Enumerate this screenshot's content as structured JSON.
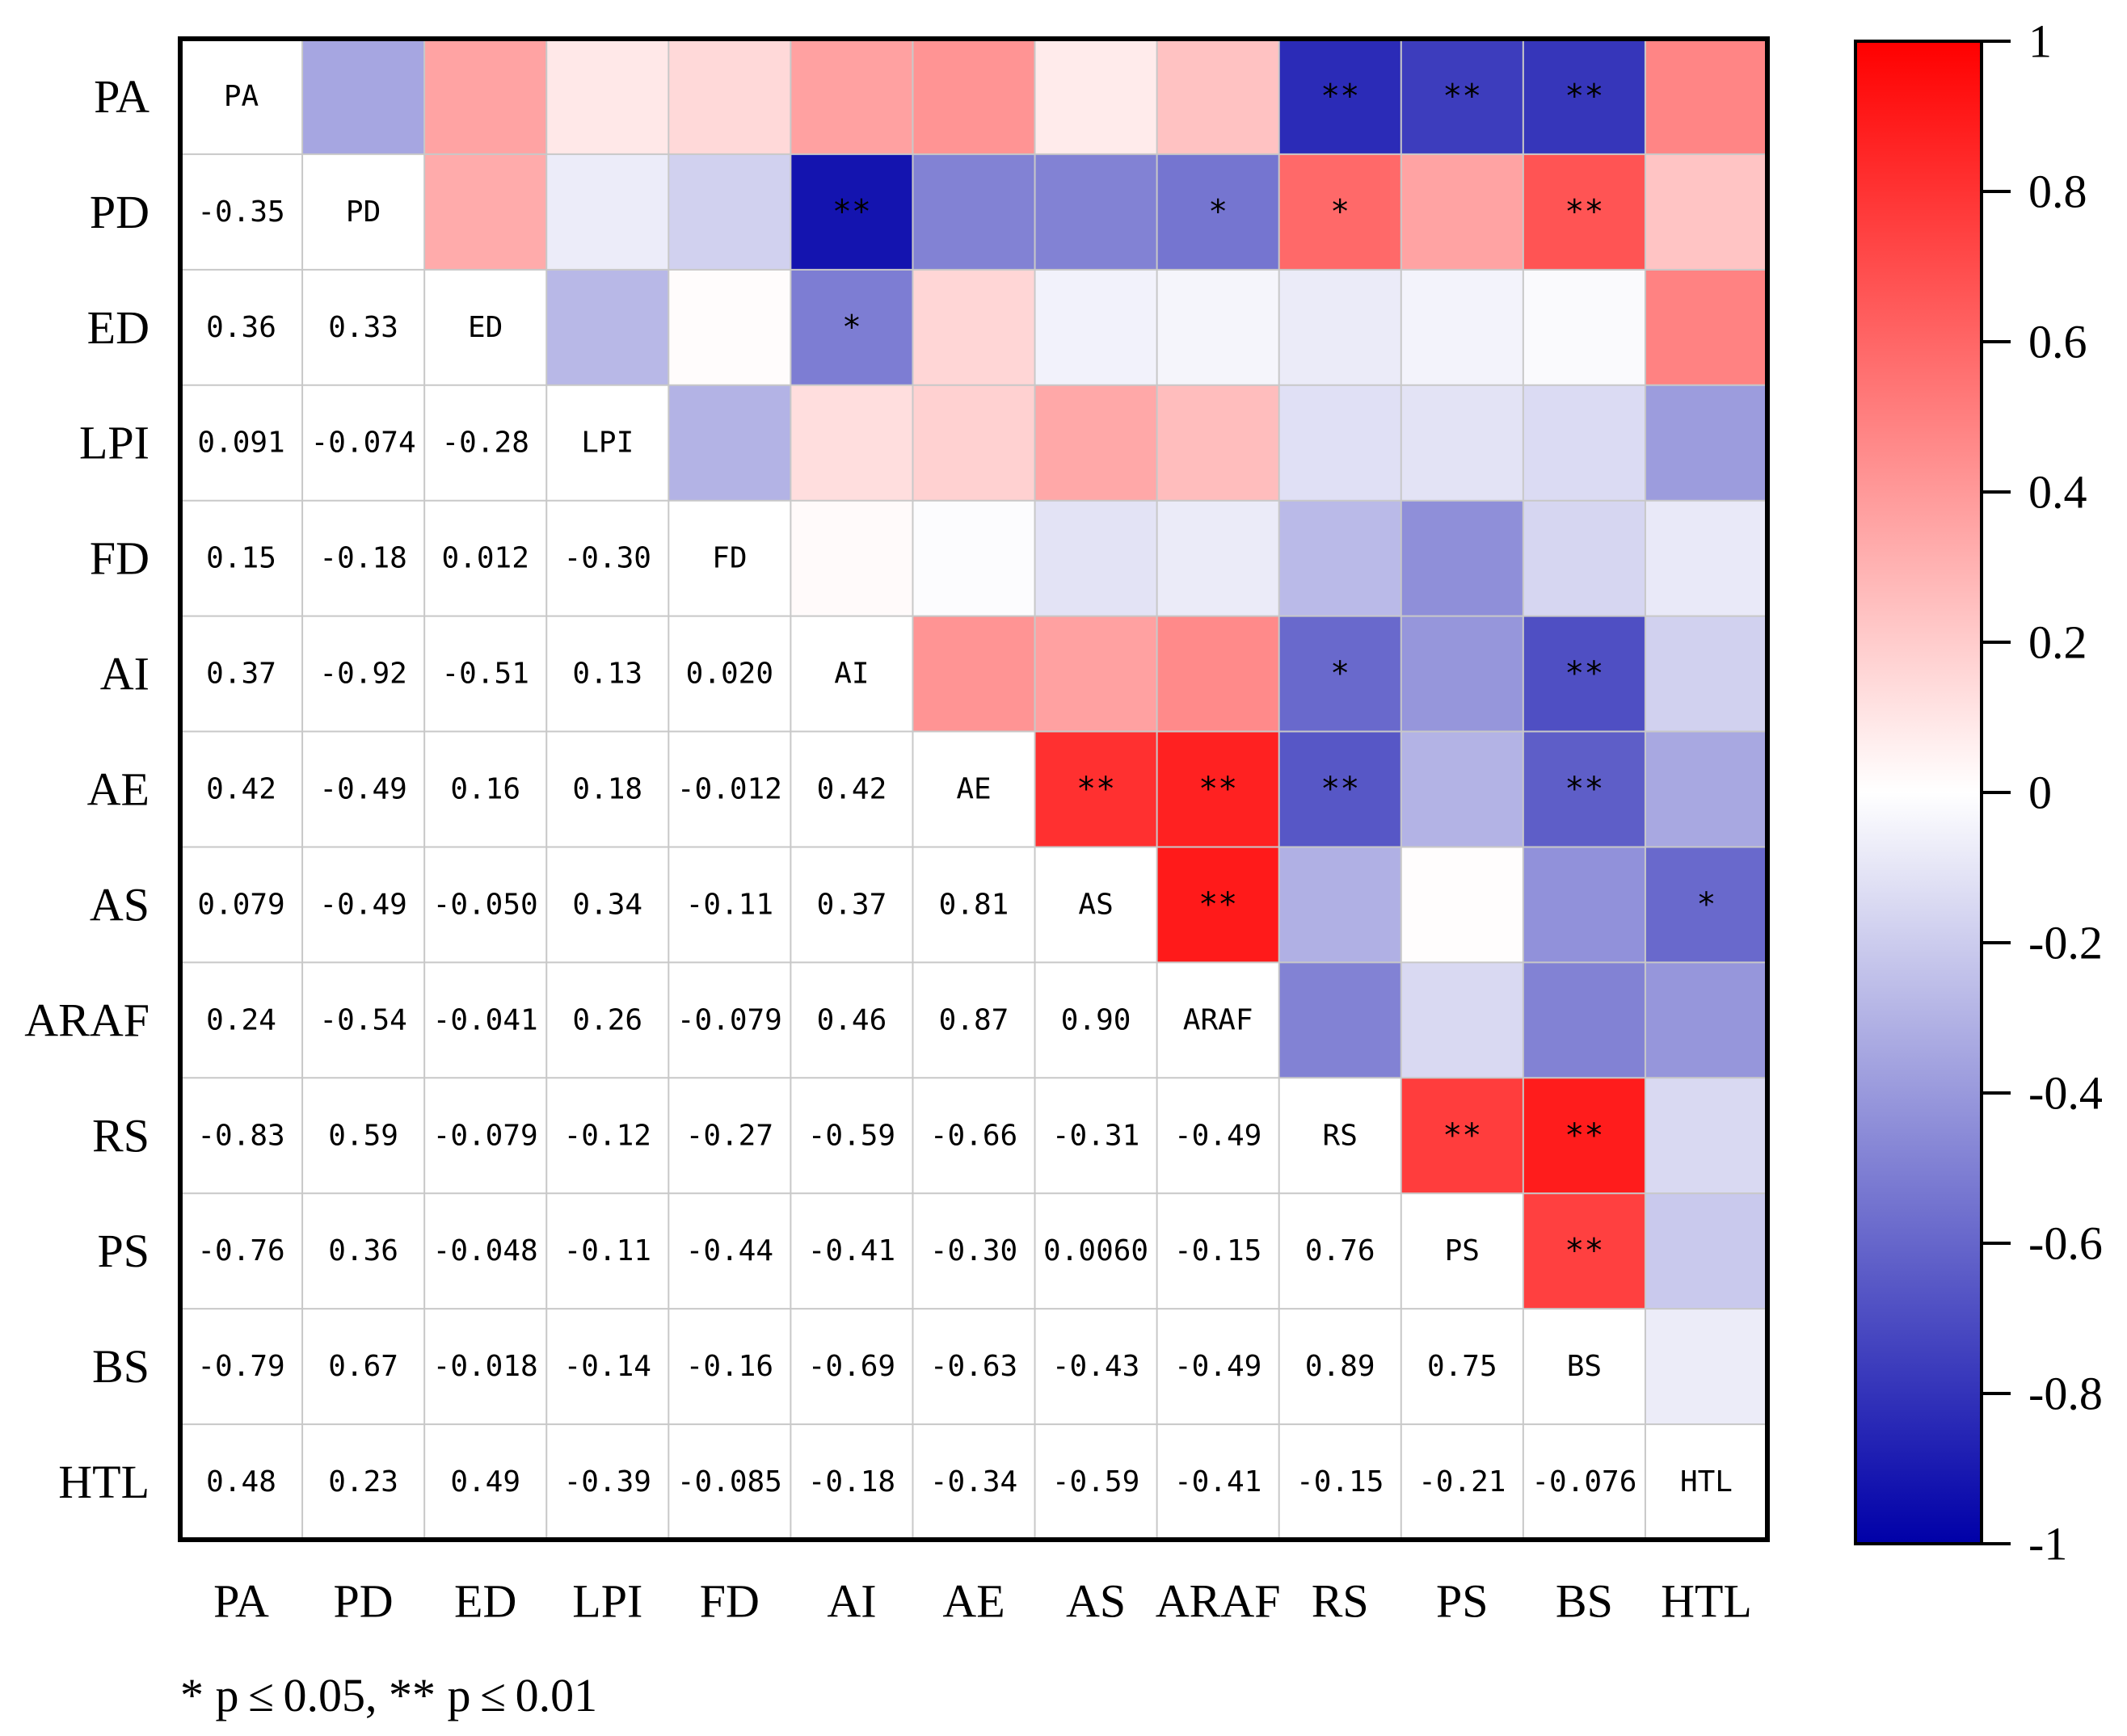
{
  "chart_data": {
    "type": "heatmap",
    "title": "",
    "variables": [
      "PA",
      "PD",
      "ED",
      "LPI",
      "FD",
      "AI",
      "AE",
      "AS",
      "ARAF",
      "RS",
      "PS",
      "BS",
      "HTL"
    ],
    "lower_triangle_labels": [
      [
        "PA"
      ],
      [
        "-0.35",
        "PD"
      ],
      [
        "0.36",
        "0.33",
        "ED"
      ],
      [
        "0.091",
        "-0.074",
        "-0.28",
        "LPI"
      ],
      [
        "0.15",
        "-0.18",
        "0.012",
        "-0.30",
        "FD"
      ],
      [
        "0.37",
        "-0.92",
        "-0.51",
        "0.13",
        "0.020",
        "AI"
      ],
      [
        "0.42",
        "-0.49",
        "0.16",
        "0.18",
        "-0.012",
        "0.42",
        "AE"
      ],
      [
        "0.079",
        "-0.49",
        "-0.050",
        "0.34",
        "-0.11",
        "0.37",
        "0.81",
        "AS"
      ],
      [
        "0.24",
        "-0.54",
        "-0.041",
        "0.26",
        "-0.079",
        "0.46",
        "0.87",
        "0.90",
        "ARAF"
      ],
      [
        "-0.83",
        "0.59",
        "-0.079",
        "-0.12",
        "-0.27",
        "-0.59",
        "-0.66",
        "-0.31",
        "-0.49",
        "RS"
      ],
      [
        "-0.76",
        "0.36",
        "-0.048",
        "-0.11",
        "-0.44",
        "-0.41",
        "-0.30",
        "0.0060",
        "-0.15",
        "0.76",
        "PS"
      ],
      [
        "-0.79",
        "0.67",
        "-0.018",
        "-0.14",
        "-0.16",
        "-0.69",
        "-0.63",
        "-0.43",
        "-0.49",
        "0.89",
        "0.75",
        "BS"
      ],
      [
        "0.48",
        "0.23",
        "0.49",
        "-0.39",
        "-0.085",
        "-0.18",
        "-0.34",
        "-0.59",
        "-0.41",
        "-0.15",
        "-0.21",
        "-0.076",
        "HTL"
      ]
    ],
    "significance_upper": [
      [
        "",
        "",
        "",
        "",
        "",
        "",
        "",
        "",
        "",
        "**",
        "**",
        "**",
        ""
      ],
      [
        "",
        "",
        "",
        "",
        "",
        "**",
        "",
        "",
        "*",
        "*",
        "",
        "**",
        ""
      ],
      [
        "",
        "",
        "",
        "",
        "",
        "*",
        "",
        "",
        "",
        "",
        "",
        "",
        ""
      ],
      [
        "",
        "",
        "",
        "",
        "",
        "",
        "",
        "",
        "",
        "",
        "",
        "",
        ""
      ],
      [
        "",
        "",
        "",
        "",
        "",
        "",
        "",
        "",
        "",
        "",
        "",
        "",
        ""
      ],
      [
        "",
        "",
        "",
        "",
        "",
        "",
        "",
        "",
        "",
        "*",
        "",
        "**",
        ""
      ],
      [
        "",
        "",
        "",
        "",
        "",
        "",
        "",
        "**",
        "**",
        "**",
        "",
        "**",
        ""
      ],
      [
        "",
        "",
        "",
        "",
        "",
        "",
        "",
        "",
        "**",
        "",
        "",
        "",
        "*"
      ],
      [
        "",
        "",
        "",
        "",
        "",
        "",
        "",
        "",
        "",
        "",
        "",
        "",
        ""
      ],
      [
        "",
        "",
        "",
        "",
        "",
        "",
        "",
        "",
        "",
        "",
        "**",
        "**",
        ""
      ],
      [
        "",
        "",
        "",
        "",
        "",
        "",
        "",
        "",
        "",
        "",
        "",
        "**",
        ""
      ],
      [
        "",
        "",
        "",
        "",
        "",
        "",
        "",
        "",
        "",
        "",
        "",
        "",
        ""
      ],
      [
        "",
        "",
        "",
        "",
        "",
        "",
        "",
        "",
        "",
        "",
        "",
        "",
        ""
      ]
    ],
    "colorbar": {
      "min": -1,
      "max": 1,
      "tick_labels": [
        "1",
        "0.8",
        "0.6",
        "0.4",
        "0.2",
        "0",
        "-0.2",
        "-0.4",
        "-0.6",
        "-0.8",
        "-1"
      ],
      "low_color": "#0000A8",
      "mid_color": "#FFFFFF",
      "high_color": "#FF0000"
    },
    "footnote": "* p ≤ 0.05,  ** p ≤ 0.01"
  }
}
